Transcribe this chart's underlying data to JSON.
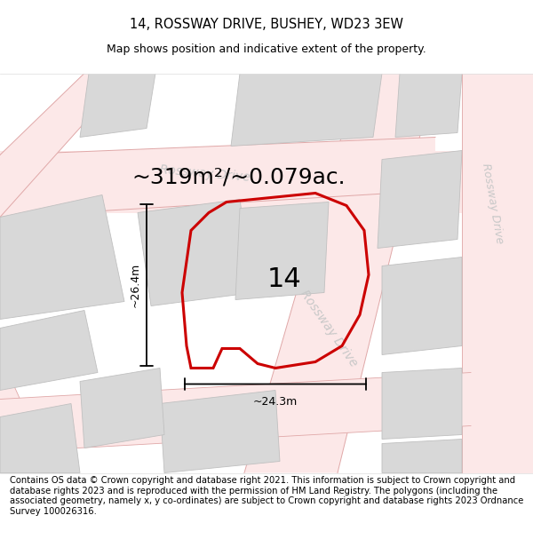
{
  "title": "14, ROSSWAY DRIVE, BUSHEY, WD23 3EW",
  "subtitle": "Map shows position and indicative extent of the property.",
  "area_text": "~319m²/~0.079ac.",
  "property_number": "14",
  "width_label": "~24.3m",
  "height_label": "~26.4m",
  "footer": "Contains OS data © Crown copyright and database right 2021. This information is subject to Crown copyright and database rights 2023 and is reproduced with the permission of HM Land Registry. The polygons (including the associated geometry, namely x, y co-ordinates) are subject to Crown copyright and database rights 2023 Ordnance Survey 100026316.",
  "building_color": "#d8d8d8",
  "building_edge": "#c0c0c0",
  "road_fill": "#fce8e8",
  "road_edge": "#e8b0b0",
  "property_color": "#cc0000",
  "rossway_color": "#c8c8c8",
  "title_fontsize": 10.5,
  "subtitle_fontsize": 9,
  "area_fontsize": 18,
  "number_fontsize": 22,
  "dim_fontsize": 9,
  "rossway_fontsize": 10,
  "footer_fontsize": 7.2
}
